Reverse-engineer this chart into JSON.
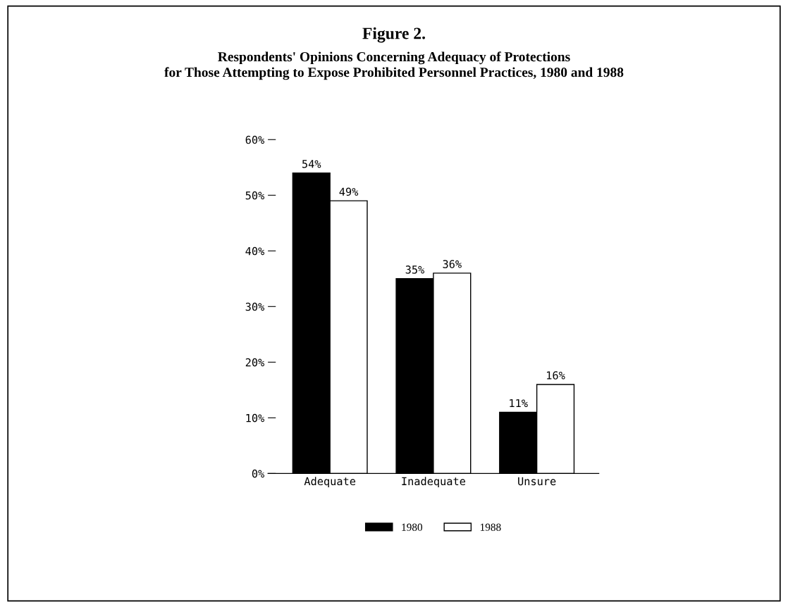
{
  "chart_data": {
    "type": "bar",
    "title": "Figure 2.",
    "subtitle": "Respondents' Opinions Concerning Adequacy of Protections\nfor Those Attempting to Expose Prohibited Personnel Practices, 1980 and 1988",
    "categories": [
      "Adequate",
      "Inadequate",
      "Unsure"
    ],
    "series": [
      {
        "name": "1980",
        "color": "#000000",
        "values": [
          54,
          35,
          11
        ],
        "value_labels": [
          "54%",
          "35%",
          "11%"
        ]
      },
      {
        "name": "1988",
        "color": "#ffffff",
        "values": [
          49,
          36,
          16
        ],
        "value_labels": [
          "49%",
          "36%",
          "16%"
        ]
      }
    ],
    "ylim": [
      0,
      60
    ],
    "yticks": [
      {
        "value": 0,
        "label": "0%"
      },
      {
        "value": 10,
        "label": "10%"
      },
      {
        "value": 20,
        "label": "20%"
      },
      {
        "value": 30,
        "label": "30%"
      },
      {
        "value": 40,
        "label": "40%"
      },
      {
        "value": 50,
        "label": "50%"
      },
      {
        "value": 60,
        "label": "60%"
      }
    ],
    "legend": "bottom"
  }
}
